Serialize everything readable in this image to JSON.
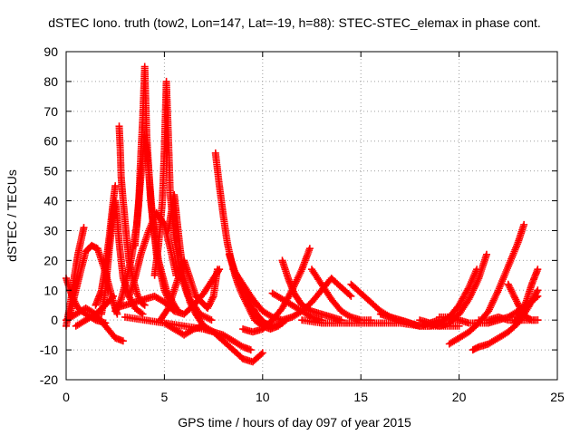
{
  "chart_data": {
    "type": "scatter",
    "title": "dSTEC Iono. truth (tow2, Lon=147, Lat=-19, h=88): STEC-STEC_elemax in phase cont.",
    "xlabel": "GPS time / hours of day 097 of year 2015",
    "ylabel": "dSTEC  / TECUs",
    "xlim": [
      0,
      25
    ],
    "ylim": [
      -20,
      90
    ],
    "xticks": [
      0,
      5,
      10,
      15,
      20,
      25
    ],
    "yticks": [
      -20,
      -10,
      0,
      10,
      20,
      30,
      40,
      50,
      60,
      70,
      80,
      90
    ],
    "xtick_labels": [
      "0",
      "5",
      "10",
      "15",
      "20",
      "25"
    ],
    "ytick_labels": [
      "-20",
      "-10",
      "0",
      "10",
      "20",
      "30",
      "40",
      "50",
      "60",
      "70",
      "80",
      "90"
    ],
    "grid": true,
    "marker": "+",
    "color": "#ff0000",
    "series": [
      {
        "x": [
          0.0,
          0.2,
          0.4,
          0.6,
          0.8,
          0.9
        ],
        "y": [
          -2,
          5,
          14,
          22,
          28,
          31
        ]
      },
      {
        "x": [
          0.0,
          0.3,
          0.6,
          1.0,
          1.5,
          2.0
        ],
        "y": [
          14,
          8,
          4,
          2,
          0,
          -1
        ]
      },
      {
        "x": [
          0.2,
          0.5,
          0.8,
          1.0,
          1.3,
          1.6,
          2.0,
          2.4,
          2.6
        ],
        "y": [
          2,
          10,
          18,
          23,
          25,
          24,
          16,
          6,
          2
        ]
      },
      {
        "x": [
          0.0,
          0.5,
          1.0,
          1.5,
          2.0,
          2.5,
          2.9
        ],
        "y": [
          0,
          2,
          4,
          2,
          -2,
          -6,
          -7
        ]
      },
      {
        "x": [
          0.5,
          1.0,
          1.5,
          2.0,
          2.4
        ],
        "y": [
          -2,
          0,
          2,
          5,
          8
        ]
      },
      {
        "x": [
          1.5,
          1.8,
          2.0,
          2.2,
          2.4,
          2.5
        ],
        "y": [
          5,
          10,
          18,
          28,
          40,
          45
        ]
      },
      {
        "x": [
          2.5,
          2.8,
          3.0,
          3.3,
          3.6,
          3.8,
          4.0,
          4.2,
          4.4,
          4.7,
          5.1,
          5.5,
          5.7
        ],
        "y": [
          3,
          7,
          12,
          20,
          32,
          48,
          62,
          50,
          34,
          20,
          10,
          5,
          3
        ]
      },
      {
        "x": [
          2.7,
          2.75,
          2.8,
          2.9,
          3.0,
          3.1,
          3.2,
          3.4,
          3.6,
          3.8,
          4.0
        ],
        "y": [
          65,
          58,
          48,
          40,
          33,
          26,
          20,
          14,
          9,
          6,
          5
        ]
      },
      {
        "x": [
          1.8,
          2.0,
          2.2,
          2.4,
          2.5,
          2.6,
          2.7,
          2.9,
          3.2,
          3.5,
          3.9
        ],
        "y": [
          2,
          10,
          24,
          36,
          40,
          34,
          26,
          14,
          8,
          4,
          2
        ]
      },
      {
        "x": [
          3.5,
          3.7,
          3.8,
          3.9,
          4.0,
          4.1,
          4.3,
          4.6,
          5.0,
          5.4
        ],
        "y": [
          25,
          40,
          55,
          68,
          85,
          62,
          40,
          22,
          10,
          4
        ]
      },
      {
        "x": [
          3.2,
          3.5,
          3.8,
          4.2,
          4.6,
          5.0,
          5.3,
          5.6
        ],
        "y": [
          8,
          14,
          22,
          30,
          36,
          32,
          24,
          15
        ]
      },
      {
        "x": [
          4.5,
          4.7,
          4.9,
          5.0,
          5.1,
          5.2,
          5.3,
          5.5,
          5.8,
          6.2,
          6.8,
          7.4
        ],
        "y": [
          15,
          25,
          40,
          57,
          80,
          62,
          42,
          28,
          16,
          8,
          2,
          0
        ]
      },
      {
        "x": [
          2.5,
          3.0,
          3.5,
          4.0,
          4.5,
          5.0,
          5.5,
          6.0,
          6.5,
          7.0,
          7.5,
          7.8
        ],
        "y": [
          4,
          5,
          6,
          7,
          8,
          6,
          3,
          2,
          5,
          9,
          14,
          17
        ]
      },
      {
        "x": [
          4.8,
          5.2,
          5.6,
          6.0,
          6.3,
          6.6,
          6.9,
          7.2,
          7.5,
          7.7
        ],
        "y": [
          0,
          4,
          12,
          20,
          14,
          8,
          6,
          4,
          8,
          17
        ]
      },
      {
        "x": [
          5.2,
          5.5,
          5.6,
          5.8,
          6.0,
          6.3,
          6.6,
          7.0,
          7.5,
          8.0,
          8.5,
          9.0,
          9.4
        ],
        "y": [
          30,
          42,
          36,
          24,
          14,
          6,
          2,
          -2,
          -4,
          -5,
          -7,
          -9,
          -10
        ]
      },
      {
        "x": [
          3.0,
          4.0,
          5.0,
          6.0,
          7.0,
          7.5,
          8.0,
          8.5,
          9.0,
          9.5,
          10.0
        ],
        "y": [
          1,
          0,
          -1,
          -2,
          -3,
          -4,
          -7,
          -10,
          -13,
          -14,
          -11
        ]
      },
      {
        "x": [
          5.0,
          5.5,
          6.0,
          6.5,
          7.0
        ],
        "y": [
          -1,
          -3,
          -5,
          -3,
          -2
        ]
      },
      {
        "x": [
          7.6,
          7.8,
          8.0,
          8.2,
          8.4,
          8.6,
          8.8,
          9.0,
          9.3,
          9.6,
          10.0,
          10.4,
          10.8,
          11.2
        ],
        "y": [
          56,
          45,
          35,
          26,
          20,
          15,
          11,
          8,
          4,
          0,
          -2,
          -3,
          -2,
          0
        ]
      },
      {
        "x": [
          8.3,
          8.6,
          8.9,
          9.2,
          9.5,
          9.8,
          10.1,
          10.5,
          11.0
        ],
        "y": [
          22,
          16,
          12,
          8,
          4,
          1,
          -1,
          -2,
          -1
        ]
      },
      {
        "x": [
          8.5,
          9.0,
          9.5,
          10.0,
          10.5,
          11.0,
          11.5
        ],
        "y": [
          17,
          12,
          7,
          3,
          1,
          0,
          1
        ]
      },
      {
        "x": [
          9.0,
          9.5,
          10.0,
          10.5,
          11.0,
          11.5,
          12.0,
          12.4
        ],
        "y": [
          -3,
          -4,
          -3,
          0,
          4,
          10,
          17,
          24
        ]
      },
      {
        "x": [
          11.0,
          11.3,
          11.6,
          12.0,
          12.5,
          13.0,
          13.5,
          14.0
        ],
        "y": [
          20,
          14,
          9,
          5,
          3,
          2,
          1,
          0
        ]
      },
      {
        "x": [
          10.5,
          11.0,
          11.5,
          12.0,
          12.5,
          13.0
        ],
        "y": [
          9,
          7,
          5,
          3,
          1,
          0
        ]
      },
      {
        "x": [
          11.5,
          12.0,
          12.5,
          13.0,
          13.5,
          14.0,
          14.5
        ],
        "y": [
          1,
          3,
          6,
          10,
          14,
          11,
          8
        ]
      },
      {
        "x": [
          12.5,
          13.0,
          13.5,
          14.0,
          14.5,
          15.0,
          15.5
        ],
        "y": [
          17,
          12,
          7,
          3,
          1,
          0,
          0
        ]
      },
      {
        "x": [
          12.0,
          13.0,
          14.0,
          15.0,
          16.0,
          17.0,
          18.0,
          19.0,
          20.0
        ],
        "y": [
          0,
          -1,
          -1,
          -1,
          -1,
          -1,
          -2,
          -2,
          -2
        ]
      },
      {
        "x": [
          14.5,
          15.0,
          15.5,
          16.0,
          16.5,
          17.0,
          17.5,
          18.0,
          18.5,
          19.0
        ],
        "y": [
          12,
          9,
          6,
          3,
          1,
          0,
          -1,
          -2,
          -1,
          0
        ]
      },
      {
        "x": [
          16.0,
          16.5,
          17.0,
          17.5,
          18.0,
          18.5,
          19.0,
          19.5,
          20.0,
          20.5,
          20.9
        ],
        "y": [
          2,
          1,
          0,
          -1,
          -2,
          -2,
          -1,
          1,
          5,
          11,
          17
        ]
      },
      {
        "x": [
          18.0,
          18.5,
          19.0,
          19.5,
          20.0,
          20.5,
          21.0,
          21.4
        ],
        "y": [
          0,
          -1,
          -2,
          -1,
          2,
          7,
          14,
          22
        ]
      },
      {
        "x": [
          19.5,
          20.0,
          20.5,
          21.0,
          21.5,
          22.0,
          22.5,
          23.0,
          23.3
        ],
        "y": [
          -8,
          -6,
          -4,
          -1,
          3,
          10,
          18,
          26,
          32
        ]
      },
      {
        "x": [
          20.7,
          21.0,
          21.5,
          22.0,
          22.5,
          23.0,
          23.5,
          24.0
        ],
        "y": [
          -10,
          -9,
          -8,
          -6,
          -4,
          -1,
          4,
          10
        ]
      },
      {
        "x": [
          19.0,
          19.5,
          20.0,
          20.5,
          21.0,
          21.5,
          22.0,
          22.5,
          23.0,
          23.5,
          24.0
        ],
        "y": [
          1,
          1,
          0,
          -1,
          -1,
          -1,
          0,
          1,
          3,
          5,
          8
        ]
      },
      {
        "x": [
          22.5,
          22.8,
          23.1,
          23.4,
          23.7,
          24.0
        ],
        "y": [
          12,
          8,
          4,
          1,
          0,
          0
        ]
      },
      {
        "x": [
          22.8,
          23.1,
          23.4,
          23.7,
          24.0
        ],
        "y": [
          -1,
          2,
          6,
          12,
          17
        ]
      },
      {
        "x": [
          21.0,
          21.5,
          22.0,
          22.5,
          23.0,
          23.5,
          24.0
        ],
        "y": [
          0,
          0,
          1,
          0,
          0,
          0,
          0
        ]
      }
    ]
  }
}
